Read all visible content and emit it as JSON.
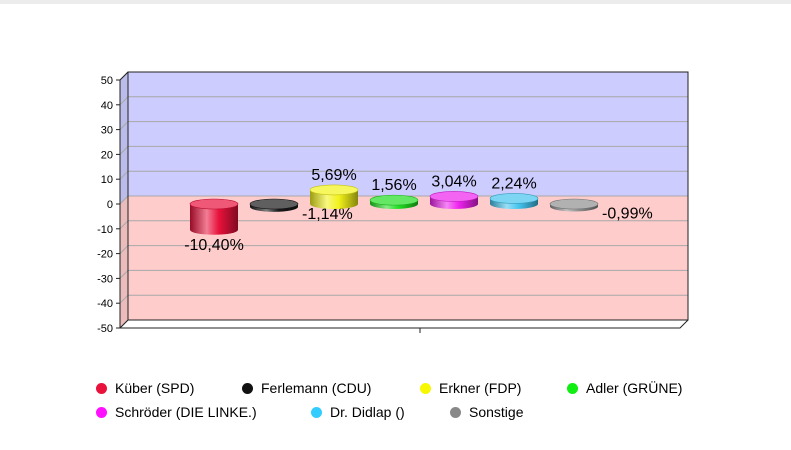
{
  "chart_data": {
    "type": "bar",
    "categories": [
      "Küber (SPD)",
      "Ferlemann (CDU)",
      "Erkner (FDP)",
      "Adler (GRÜNE)",
      "Schröder (DIE LINKE.)",
      "Dr. Didlap ()",
      "Sonstige"
    ],
    "values": [
      -10.4,
      -1.14,
      5.69,
      1.56,
      3.04,
      2.24,
      -0.99
    ],
    "value_labels": [
      "-10,40%",
      "-1,14%",
      "5,69%",
      "1,56%",
      "3,04%",
      "2,24%",
      "-0,99%"
    ],
    "colors": [
      "#e8123c",
      "#1a1a1a",
      "#f2f21a",
      "#22dd22",
      "#ee22ee",
      "#44c4ee",
      "#8f8f8f"
    ],
    "ylim": [
      -50,
      50
    ],
    "yticks": [
      50,
      40,
      30,
      20,
      10,
      0,
      -10,
      -20,
      -30,
      -40,
      -50
    ],
    "grid": true,
    "background_positive": "#ccccff",
    "background_negative": "#ffcccc",
    "legend_position": "bottom"
  },
  "legend": {
    "rows": [
      [
        {
          "label": "Küber (SPD)",
          "color": "#e8123c"
        },
        {
          "label": "Ferlemann (CDU)",
          "color": "#111111"
        },
        {
          "label": "Erkner (FDP)",
          "color": "#f7f700"
        },
        {
          "label": "Adler (GRÜNE)",
          "color": "#11ee11"
        }
      ],
      [
        {
          "label": "Schröder (DIE LINKE.)",
          "color": "#ff11ff"
        },
        {
          "label": "Dr. Didlap ()",
          "color": "#33ccff"
        },
        {
          "label": "Sonstige",
          "color": "#888888"
        }
      ]
    ]
  }
}
